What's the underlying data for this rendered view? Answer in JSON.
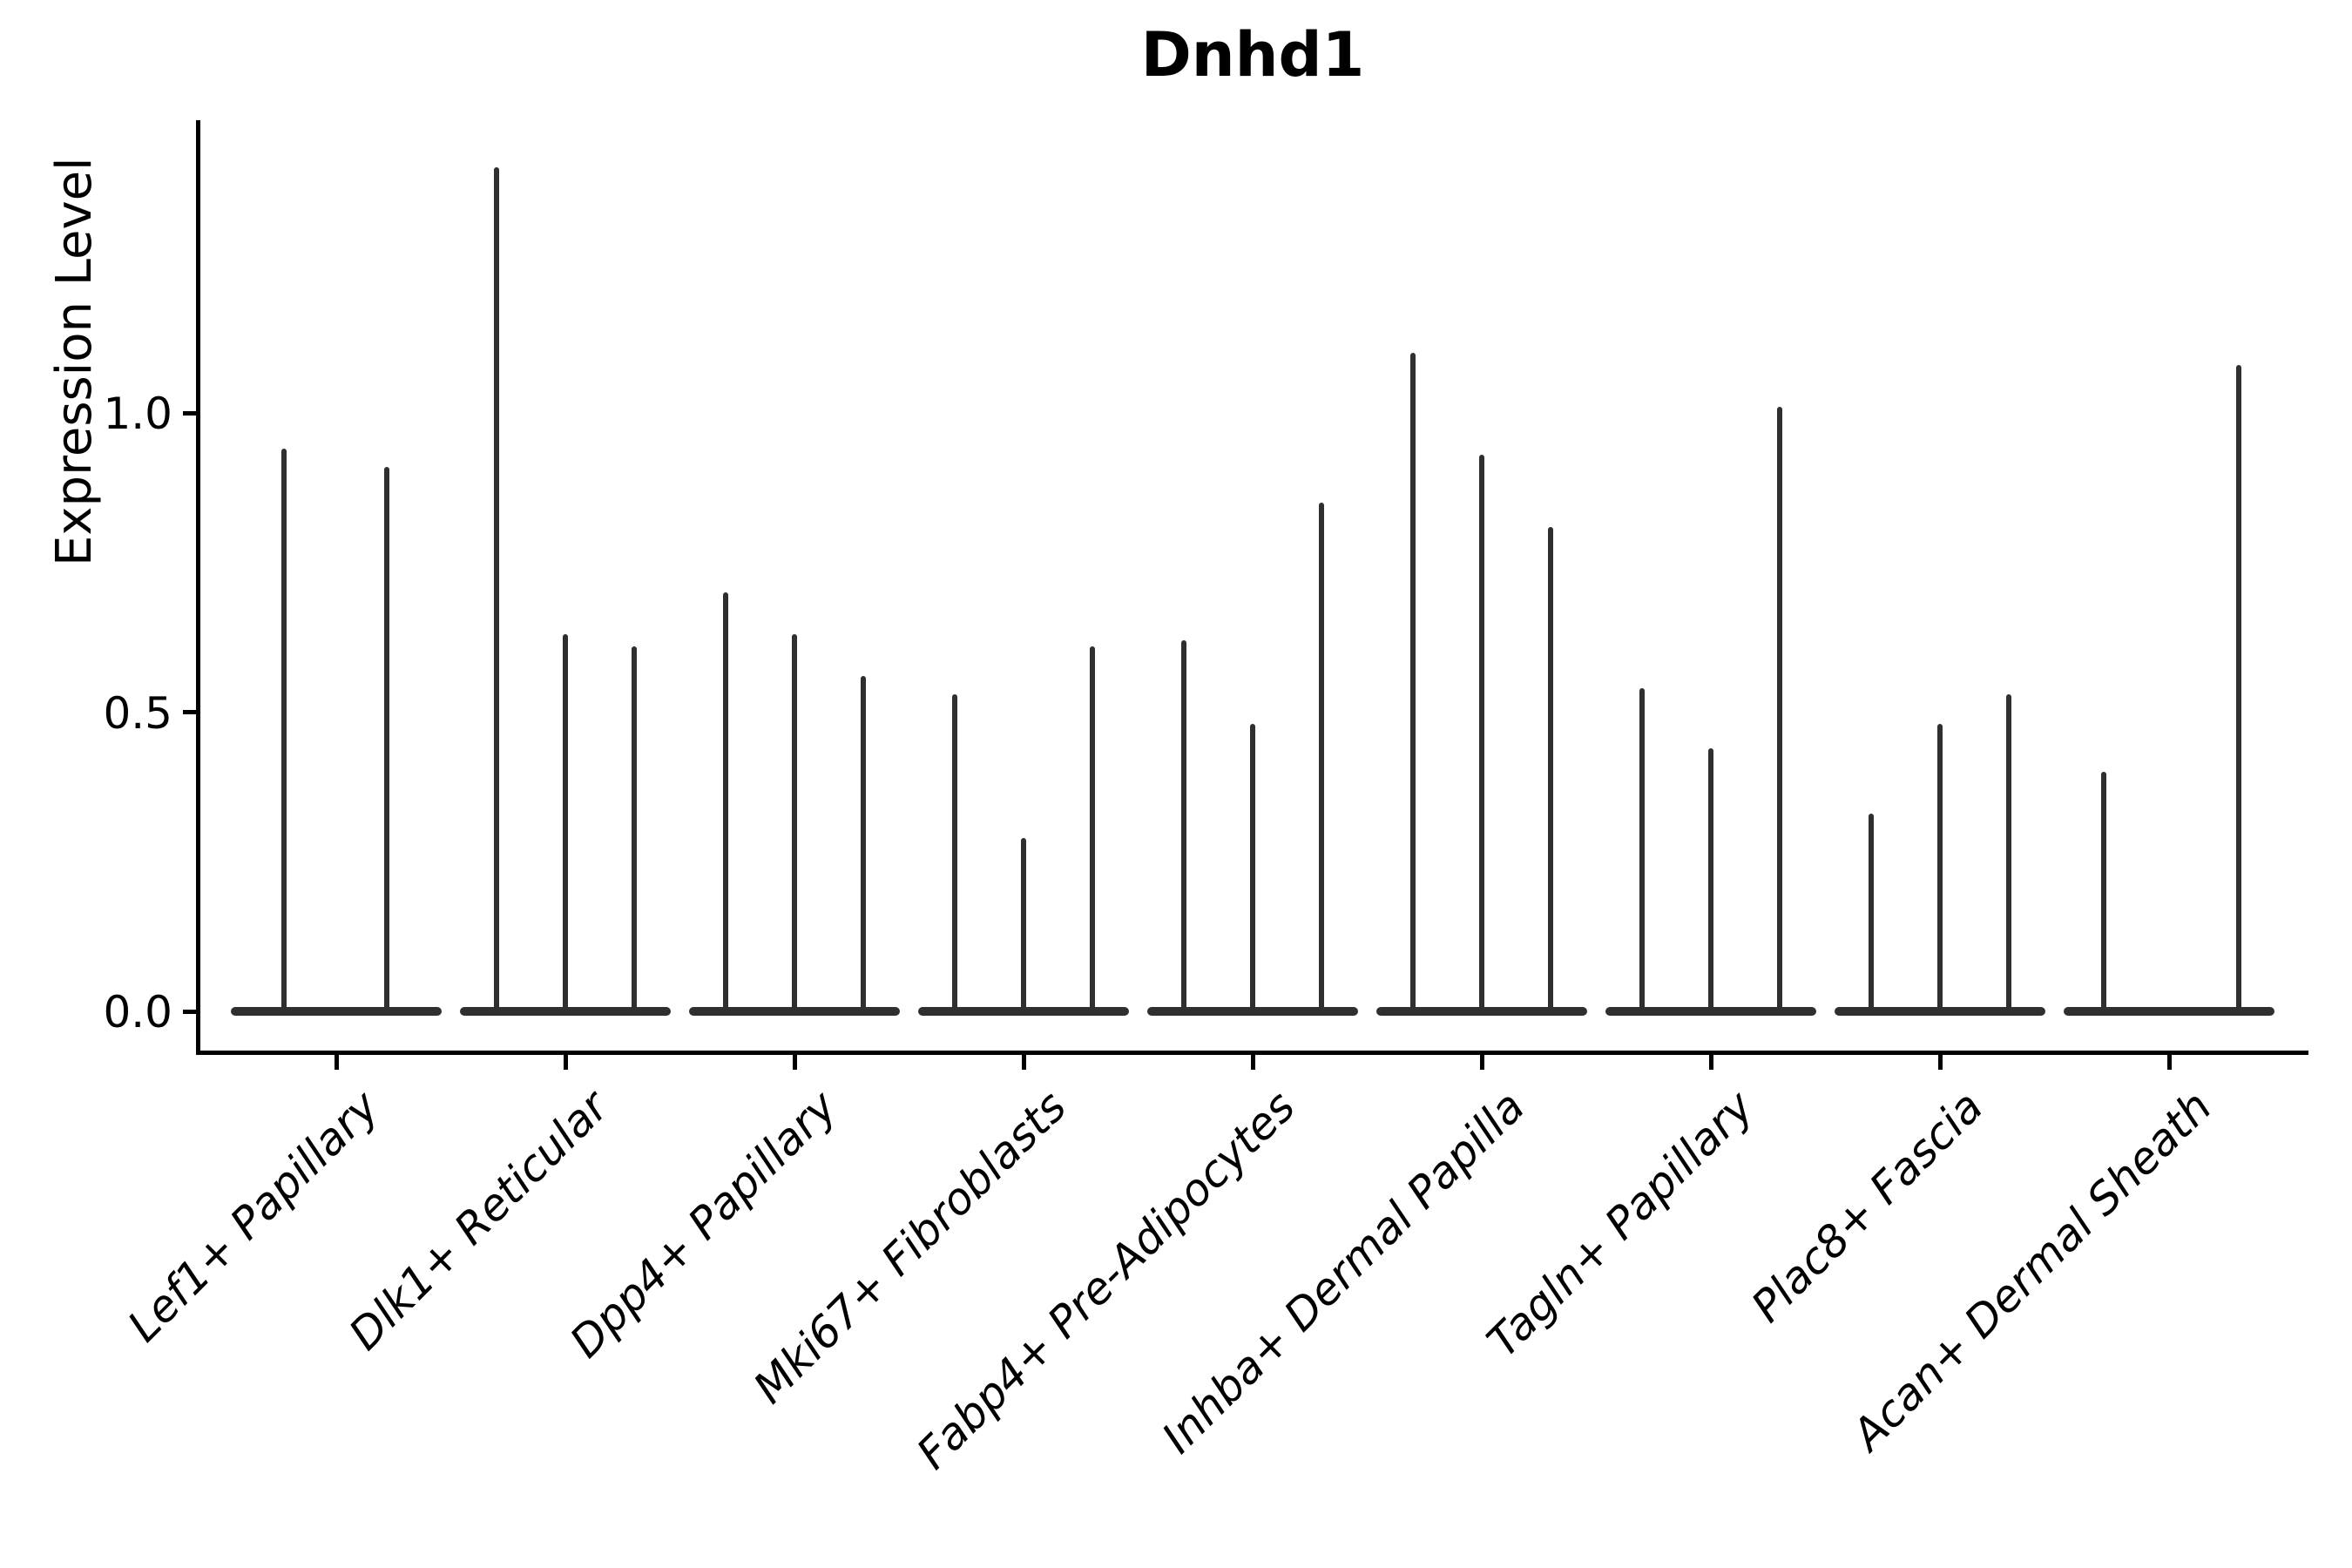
{
  "chart_data": {
    "type": "violin",
    "title": "Dnhd1",
    "ylabel": "Expression Level",
    "xlabel": "",
    "yticks": [
      1.0,
      0.5,
      0.0
    ],
    "ylim": [
      0,
      1.49
    ],
    "grid": false,
    "legend": "none",
    "violin_color": "#2f2f2f",
    "axis_color": "#000000",
    "categories": [
      "Lef1+ Papillary",
      "Dlk1+ Reticular",
      "Dpp4+ Papillary",
      "Mki67+ Fibroblasts",
      "Fabp4+ Pre-Adipocytes",
      "Inhba+ Dermal Papilla",
      "Tagln+ Papillary",
      "Plac8+ Fascia",
      "Acan+ Dermal Sheath"
    ],
    "groups": [
      {
        "category": "Lef1+ Papillary",
        "violins": [
          {
            "pos": -60,
            "max": 0.94
          },
          {
            "pos": 58,
            "max": 0.91
          }
        ]
      },
      {
        "category": "Dlk1+ Reticular",
        "violins": [
          {
            "pos": -79,
            "max": 1.41
          },
          {
            "pos": 0,
            "max": 0.63
          },
          {
            "pos": 79,
            "max": 0.61
          }
        ]
      },
      {
        "category": "Dpp4+ Papillary",
        "violins": [
          {
            "pos": -79,
            "max": 0.7
          },
          {
            "pos": 0,
            "max": 0.63
          },
          {
            "pos": 79,
            "max": 0.56
          }
        ]
      },
      {
        "category": "Mki67+ Fibroblasts",
        "violins": [
          {
            "pos": -79,
            "max": 0.53
          },
          {
            "pos": 0,
            "max": 0.29
          },
          {
            "pos": 79,
            "max": 0.61
          }
        ]
      },
      {
        "category": "Fabp4+ Pre-Adipocytes",
        "violins": [
          {
            "pos": -79,
            "max": 0.62
          },
          {
            "pos": 0,
            "max": 0.48
          },
          {
            "pos": 79,
            "max": 0.85
          }
        ]
      },
      {
        "category": "Inhba+ Dermal Papilla",
        "violins": [
          {
            "pos": -79,
            "max": 1.1
          },
          {
            "pos": 0,
            "max": 0.93
          },
          {
            "pos": 79,
            "max": 0.81
          }
        ]
      },
      {
        "category": "Tagln+ Papillary",
        "violins": [
          {
            "pos": -79,
            "max": 0.54
          },
          {
            "pos": 0,
            "max": 0.44
          },
          {
            "pos": 79,
            "max": 1.01
          }
        ]
      },
      {
        "category": "Plac8+ Fascia",
        "violins": [
          {
            "pos": -79,
            "max": 0.33
          },
          {
            "pos": 0,
            "max": 0.48
          },
          {
            "pos": 79,
            "max": 0.53
          }
        ]
      },
      {
        "category": "Acan+ Dermal Sheath",
        "violins": [
          {
            "pos": -75,
            "max": 0.4
          },
          {
            "pos": 80,
            "max": 1.08
          }
        ]
      }
    ]
  }
}
